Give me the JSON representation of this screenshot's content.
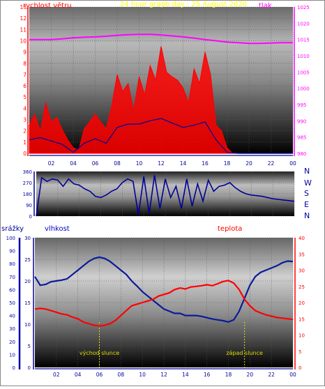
{
  "header": {
    "title": "24 hour graph day : 25 August 2020",
    "left_label": "rychlost větru",
    "right_label": "tlak"
  },
  "colors": {
    "wind": "#ff0000",
    "pressure": "#ff00ff",
    "direction": "#000099",
    "humidity": "#0a1a9a",
    "temperature": "#ff0000",
    "rain_axis": "#0000aa",
    "title": "#ffff00",
    "event": "#dddd00",
    "tick_text": "#000099"
  },
  "chart_data": [
    {
      "id": "wind-pressure",
      "type": "line",
      "title": "24 hour graph day : 25 August 2020",
      "x_ticks": [
        "02",
        "04",
        "06",
        "08",
        "10",
        "12",
        "14",
        "16",
        "18",
        "20",
        "22",
        "00"
      ],
      "xlim": [
        0,
        24
      ],
      "y_left": {
        "label": "rychlost větru",
        "ticks": [
          "0",
          "1",
          "2",
          "3",
          "4",
          "5",
          "6",
          "7",
          "8",
          "9",
          "10",
          "11",
          "12",
          "13"
        ],
        "ylim": [
          0,
          13
        ]
      },
      "y_right": {
        "label": "tlak",
        "ticks": [
          "980",
          "985",
          "990",
          "995",
          "1000",
          "1005",
          "1010",
          "1015",
          "1020",
          "1025"
        ],
        "ylim": [
          980,
          1025
        ]
      },
      "series": [
        {
          "name": "tlak",
          "axis": "right",
          "x": [
            0,
            1,
            2,
            3,
            4,
            5,
            6,
            7,
            8,
            9,
            10,
            11,
            12,
            13,
            14,
            15,
            16,
            17,
            18,
            19,
            20,
            21,
            22,
            23,
            24
          ],
          "values": [
            1015,
            1015,
            1015,
            1015.2,
            1015.5,
            1015.7,
            1015.8,
            1016,
            1016.3,
            1016.5,
            1016.6,
            1016.6,
            1016.4,
            1016.1,
            1015.8,
            1015.4,
            1015,
            1014.6,
            1014.2,
            1014,
            1013.8,
            1013.8,
            1013.9,
            1014,
            1014
          ]
        },
        {
          "name": "wind-gust",
          "axis": "left",
          "x": [
            0,
            0.5,
            1,
            1.5,
            2,
            2.5,
            3,
            3.5,
            4,
            4.5,
            5,
            5.5,
            6,
            6.5,
            7,
            7.5,
            8,
            8.5,
            9,
            9.5,
            10,
            10.5,
            11,
            11.5,
            12,
            12.5,
            13,
            13.5,
            14,
            14.5,
            15,
            15.5,
            16,
            16.5,
            17,
            17.5,
            18,
            18.5,
            19,
            19.5,
            20,
            20.5,
            21,
            21.5,
            22,
            22.5,
            23,
            23.5,
            24
          ],
          "values": [
            2.5,
            3.5,
            2,
            4.5,
            2.8,
            3.2,
            2.1,
            1.2,
            0.5,
            0.3,
            2.2,
            2.8,
            3.5,
            2.8,
            2.2,
            4.2,
            7,
            5.5,
            6.2,
            3.8,
            6.8,
            5.2,
            7.8,
            6.5,
            9.5,
            7.2,
            6.8,
            6.5,
            5.8,
            4.5,
            7.5,
            6.2,
            9,
            7,
            2.5,
            2,
            0.5,
            0,
            0,
            0,
            0,
            0,
            0,
            0,
            0,
            0,
            0,
            0,
            0
          ]
        },
        {
          "name": "wind-average",
          "axis": "left",
          "x": [
            0,
            1,
            2,
            3,
            4,
            5,
            6,
            7,
            8,
            9,
            10,
            11,
            12,
            13,
            14,
            15,
            16,
            17,
            18,
            19,
            20,
            21,
            22,
            23,
            24
          ],
          "values": [
            1.2,
            1.4,
            1.1,
            0.8,
            0.1,
            0.9,
            1.3,
            0.9,
            2.3,
            2.6,
            2.6,
            2.9,
            3.1,
            2.7,
            2.3,
            2.5,
            2.8,
            1.2,
            0.1,
            0,
            0,
            0,
            0,
            0,
            0
          ]
        }
      ]
    },
    {
      "id": "wind-direction",
      "type": "line",
      "x_ticks": [
        "02",
        "04",
        "06",
        "08",
        "10",
        "12",
        "14",
        "16",
        "18",
        "20",
        "22",
        "00"
      ],
      "xlim": [
        0,
        24
      ],
      "y_left": {
        "ticks": [
          "0",
          "90",
          "180",
          "270",
          "360"
        ],
        "ylim": [
          0,
          360
        ]
      },
      "compass": [
        "N",
        "W",
        "S",
        "E",
        "N"
      ],
      "series": [
        {
          "name": "wind-direction",
          "x": [
            0,
            0.5,
            1,
            1.5,
            2,
            2.5,
            3,
            3.5,
            4,
            4.5,
            5,
            5.5,
            6,
            6.5,
            7,
            7.5,
            8,
            8.5,
            9,
            9.5,
            10,
            10.5,
            11,
            11.5,
            12,
            12.5,
            13,
            13.5,
            14,
            14.5,
            15,
            15.5,
            16,
            16.5,
            17,
            17.5,
            18,
            18.5,
            19,
            19.5,
            20,
            20.5,
            21,
            21.5,
            22,
            22.5,
            23,
            23.5,
            24
          ],
          "values": [
            0,
            310,
            280,
            300,
            290,
            240,
            300,
            260,
            250,
            220,
            200,
            160,
            150,
            170,
            200,
            220,
            270,
            300,
            280,
            10,
            320,
            20,
            330,
            60,
            300,
            150,
            240,
            60,
            300,
            80,
            260,
            120,
            290,
            200,
            240,
            250,
            270,
            230,
            200,
            180,
            170,
            165,
            160,
            150,
            140,
            135,
            130,
            125,
            120
          ]
        }
      ]
    },
    {
      "id": "humidity-temperature-rain",
      "type": "line",
      "x_ticks": [
        "02",
        "04",
        "06",
        "08",
        "10",
        "12",
        "14",
        "16",
        "18",
        "20",
        "22",
        "00"
      ],
      "xlim": [
        0,
        24
      ],
      "labels": {
        "rain": "srážky",
        "humidity": "vlhkost",
        "temperature": "teplota"
      },
      "y_rain": {
        "ticks": [
          "0",
          "10",
          "20",
          "30",
          "40",
          "50",
          "60",
          "70",
          "80",
          "90",
          "100"
        ],
        "ylim": [
          0,
          100
        ]
      },
      "y_humidity": {
        "ticks": [
          "0",
          "5",
          "10",
          "15",
          "20",
          "25",
          "30"
        ],
        "ylim": [
          0,
          30
        ]
      },
      "y_temperature": {
        "ticks": [
          "0",
          "5",
          "10",
          "15",
          "20",
          "25",
          "30",
          "35",
          "40"
        ],
        "ylim": [
          0,
          40
        ]
      },
      "events": [
        {
          "label": "východ slunce",
          "x": 6
        },
        {
          "label": "západ slunce",
          "x": 19.5
        }
      ],
      "series": [
        {
          "name": "vlhkost",
          "axis": "humidity",
          "x": [
            0,
            0.5,
            1,
            1.5,
            2,
            2.5,
            3,
            3.5,
            4,
            4.5,
            5,
            5.5,
            6,
            6.5,
            7,
            7.5,
            8,
            8.5,
            9,
            9.5,
            10,
            10.5,
            11,
            11.5,
            12,
            12.5,
            13,
            13.5,
            14,
            14.5,
            15,
            15.5,
            16,
            16.5,
            17,
            17.5,
            18,
            18.5,
            19,
            19.5,
            20,
            20.5,
            21,
            21.5,
            22,
            22.5,
            23,
            23.5,
            24
          ],
          "values": [
            21,
            19,
            19.2,
            19.8,
            20,
            20.2,
            20.5,
            21.5,
            22.5,
            23.5,
            24.5,
            25.2,
            25.5,
            25.2,
            24.5,
            23.5,
            22.5,
            21.5,
            20,
            18.8,
            17.5,
            16.5,
            15.5,
            14.5,
            13.5,
            13,
            12.5,
            12.5,
            12,
            12,
            12,
            11.8,
            11.5,
            11.2,
            11,
            10.8,
            10.5,
            11,
            13,
            16,
            19,
            21,
            22,
            22.5,
            23,
            23.5,
            24.2,
            24.6,
            24.5
          ]
        },
        {
          "name": "teplota",
          "axis": "temperature",
          "x": [
            0,
            0.5,
            1,
            1.5,
            2,
            2.5,
            3,
            3.5,
            4,
            4.5,
            5,
            5.5,
            6,
            6.5,
            7,
            7.5,
            8,
            8.5,
            9,
            9.5,
            10,
            10.5,
            11,
            11.5,
            12,
            12.5,
            13,
            13.5,
            14,
            14.5,
            15,
            15.5,
            16,
            16.5,
            17,
            17.5,
            18,
            18.5,
            19,
            19.5,
            20,
            20.5,
            21,
            21.5,
            22,
            22.5,
            23,
            23.5,
            24
          ],
          "values": [
            18,
            18.2,
            18,
            17.5,
            17,
            16.5,
            16.2,
            15.5,
            15,
            14,
            13.5,
            13,
            12.8,
            13,
            13.5,
            14.5,
            16,
            17.5,
            19,
            19.5,
            20,
            20.5,
            21,
            22,
            22.5,
            23,
            24,
            24.5,
            24.2,
            24.8,
            25,
            25.2,
            25.5,
            25.2,
            25.8,
            26.5,
            26.8,
            26,
            24,
            21,
            19,
            17.5,
            16.8,
            16.2,
            15.8,
            15.4,
            15.2,
            15,
            14.8
          ]
        }
      ]
    }
  ]
}
